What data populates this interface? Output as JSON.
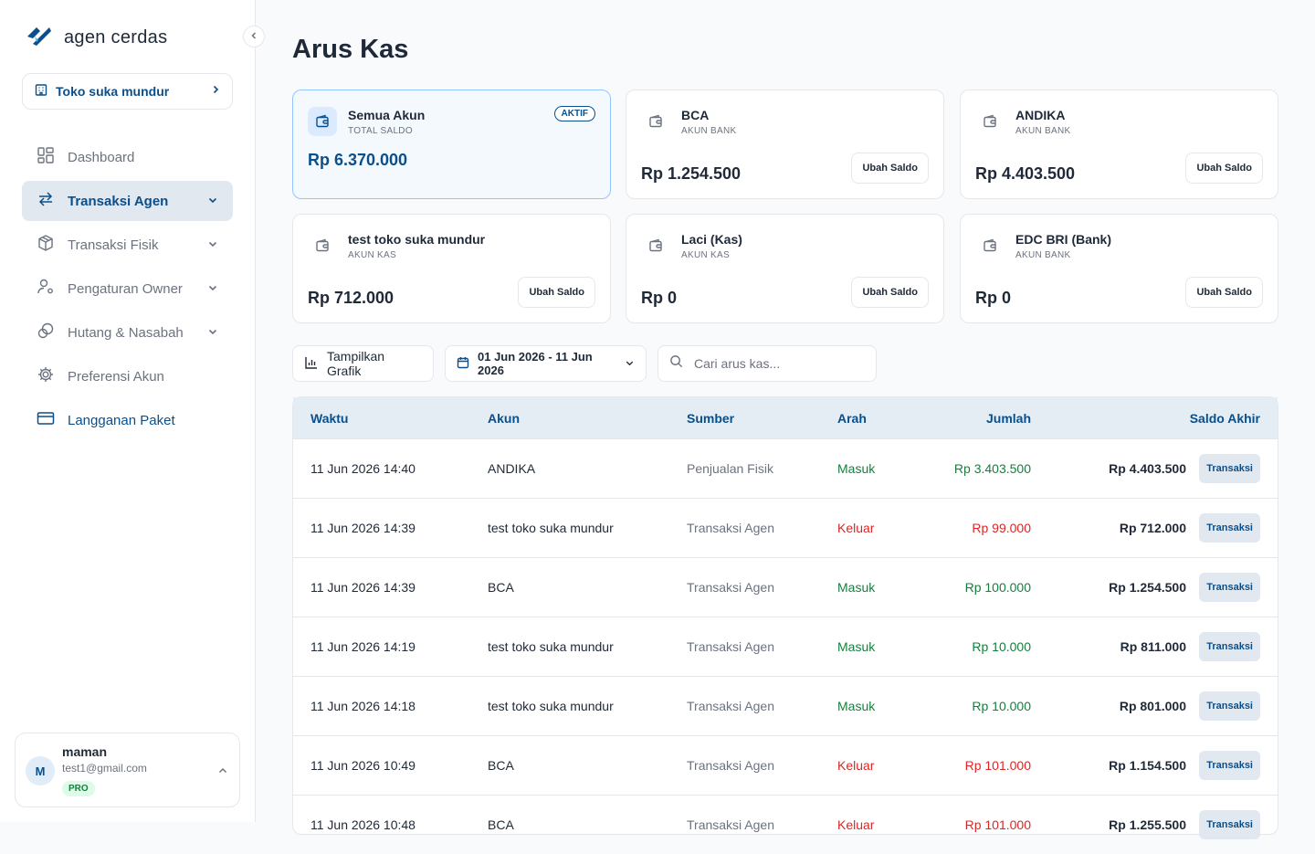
{
  "brand": {
    "name": "agen cerdas"
  },
  "store": {
    "label": "Toko suka mundur"
  },
  "nav": [
    {
      "label": "Dashboard",
      "icon": "grid-icon"
    },
    {
      "label": "Transaksi Agen",
      "icon": "arrows-swap-icon"
    },
    {
      "label": "Transaksi Fisik",
      "icon": "box-icon"
    },
    {
      "label": "Pengaturan Owner",
      "icon": "user-gear-icon"
    },
    {
      "label": "Hutang & Nasabah",
      "icon": "coins-icon"
    },
    {
      "label": "Preferensi Akun",
      "icon": "gear-icon"
    },
    {
      "label": "Langganan Paket",
      "icon": "credit-card-icon"
    }
  ],
  "user": {
    "initial": "M",
    "name": "maman",
    "email": "test1@gmail.com",
    "plan": "PRO"
  },
  "page": {
    "title": "Arus Kas"
  },
  "accounts": [
    {
      "name": "Semua Akun",
      "type": "TOTAL SALDO",
      "amount": "Rp 6.370.000",
      "badge": "AKTIF"
    },
    {
      "name": "BCA",
      "type": "AKUN BANK",
      "amount": "Rp 1.254.500",
      "action": "Ubah Saldo"
    },
    {
      "name": "ANDIKA",
      "type": "AKUN BANK",
      "amount": "Rp 4.403.500",
      "action": "Ubah Saldo"
    },
    {
      "name": "test toko suka mundur",
      "type": "AKUN KAS",
      "amount": "Rp 712.000",
      "action": "Ubah Saldo"
    },
    {
      "name": "Laci (Kas)",
      "type": "AKUN KAS",
      "amount": "Rp 0",
      "action": "Ubah Saldo"
    },
    {
      "name": "EDC BRI (Bank)",
      "type": "AKUN BANK",
      "amount": "Rp 0",
      "action": "Ubah Saldo"
    }
  ],
  "toolbar": {
    "chart_label": "Tampilkan Grafik",
    "date_range": "01 Jun 2026 - 11 Jun 2026",
    "search_placeholder": "Cari arus kas..."
  },
  "table": {
    "headers": [
      "Waktu",
      "Akun",
      "Sumber",
      "Arah",
      "Jumlah",
      "Saldo Akhir"
    ],
    "action_label": "Transaksi",
    "rows": [
      {
        "waktu": "11 Jun 2026 14:40",
        "akun": "ANDIKA",
        "sumber": "Penjualan Fisik",
        "arah": "Masuk",
        "jumlah": "Rp 3.403.500",
        "saldo": "Rp 4.403.500"
      },
      {
        "waktu": "11 Jun 2026 14:39",
        "akun": "test toko suka mundur",
        "sumber": "Transaksi Agen",
        "arah": "Keluar",
        "jumlah": "Rp 99.000",
        "saldo": "Rp 712.000"
      },
      {
        "waktu": "11 Jun 2026 14:39",
        "akun": "BCA",
        "sumber": "Transaksi Agen",
        "arah": "Masuk",
        "jumlah": "Rp 100.000",
        "saldo": "Rp 1.254.500"
      },
      {
        "waktu": "11 Jun 2026 14:19",
        "akun": "test toko suka mundur",
        "sumber": "Transaksi Agen",
        "arah": "Masuk",
        "jumlah": "Rp 10.000",
        "saldo": "Rp 811.000"
      },
      {
        "waktu": "11 Jun 2026 14:18",
        "akun": "test toko suka mundur",
        "sumber": "Transaksi Agen",
        "arah": "Masuk",
        "jumlah": "Rp 10.000",
        "saldo": "Rp 801.000"
      },
      {
        "waktu": "11 Jun 2026 10:49",
        "akun": "BCA",
        "sumber": "Transaksi Agen",
        "arah": "Keluar",
        "jumlah": "Rp 101.000",
        "saldo": "Rp 1.154.500"
      },
      {
        "waktu": "11 Jun 2026 10:48",
        "akun": "BCA",
        "sumber": "Transaksi Agen",
        "arah": "Keluar",
        "jumlah": "Rp 101.000",
        "saldo": "Rp 1.255.500"
      }
    ]
  }
}
